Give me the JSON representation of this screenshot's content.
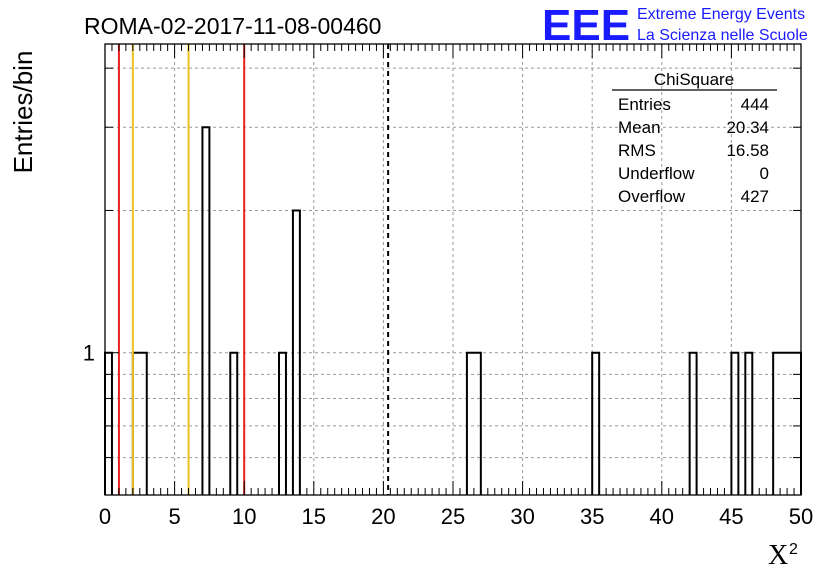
{
  "chart_data": {
    "type": "bar",
    "title": "ROMA-02-2017-11-08-00460",
    "ylabel": "Entries/bin",
    "xlabel": "X",
    "xlabel_superscript": "2",
    "xlim": [
      0,
      50
    ],
    "ylog": true,
    "ylim": [
      0.5,
      4.5
    ],
    "grid": true,
    "bin_width": 1,
    "x_ticks": [
      0,
      5,
      10,
      15,
      20,
      25,
      30,
      35,
      40,
      45,
      50
    ],
    "y_tick_labels": [
      {
        "value": 1,
        "label": "1"
      }
    ],
    "bins": [
      {
        "x0": 0,
        "x1": 0.5,
        "y": 1
      },
      {
        "x0": 2,
        "x1": 3,
        "y": 1
      },
      {
        "x0": 7,
        "x1": 7.5,
        "y": 3
      },
      {
        "x0": 9,
        "x1": 9.5,
        "y": 1
      },
      {
        "x0": 12.5,
        "x1": 13,
        "y": 1
      },
      {
        "x0": 13.5,
        "x1": 14,
        "y": 2
      },
      {
        "x0": 26,
        "x1": 27,
        "y": 1
      },
      {
        "x0": 35,
        "x1": 35.5,
        "y": 1
      },
      {
        "x0": 42,
        "x1": 42.5,
        "y": 1
      },
      {
        "x0": 45,
        "x1": 45.5,
        "y": 1
      },
      {
        "x0": 46,
        "x1": 46.5,
        "y": 1
      },
      {
        "x0": 48,
        "x1": 50,
        "y": 1
      }
    ],
    "vertical_lines": [
      {
        "x": 1,
        "color": "#e8211c",
        "style": "solid"
      },
      {
        "x": 2,
        "color": "#f0c020",
        "style": "solid"
      },
      {
        "x": 6,
        "color": "#f0c020",
        "style": "solid"
      },
      {
        "x": 10,
        "color": "#e8211c",
        "style": "solid"
      },
      {
        "x": 20.34,
        "color": "#000000",
        "style": "dashed"
      }
    ]
  },
  "stats": {
    "title": "ChiSquare",
    "rows": [
      {
        "label": "Entries",
        "value": "444"
      },
      {
        "label": "Mean",
        "value": "20.34"
      },
      {
        "label": "RMS",
        "value": "16.58"
      },
      {
        "label": "Underflow",
        "value": "0"
      },
      {
        "label": "Overflow",
        "value": "427"
      }
    ]
  },
  "logo": {
    "big": "EEE",
    "line1": "Extreme Energy Events",
    "line2": "La Scienza nelle Scuole",
    "color": "#1a1aff"
  }
}
